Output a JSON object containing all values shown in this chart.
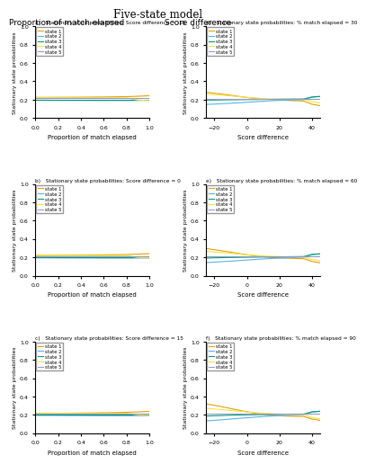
{
  "title": "Five-state model",
  "col_labels": [
    "Proportion of match elapsed",
    "Score difference"
  ],
  "subplot_labels": [
    "a)",
    "b)",
    "c)",
    "d)",
    "e)",
    "f)"
  ],
  "subplot_titles": [
    "Stationary state probabilities: Score difference = -15",
    "Stationary state probabilities: Score difference = 0",
    "Stationary state probabilities: Score difference = 15",
    "Stationary state probabilities: % match elapsed = 30",
    "Stationary state probabilities: % match elapsed = 60",
    "Stationary state probabilities: % match elapsed = 90"
  ],
  "state_colors": [
    "#E69F00",
    "#56B4E9",
    "#009E73",
    "#F0E442",
    "#9999CC"
  ],
  "state_labels": [
    "state 1",
    "state 2",
    "state 3",
    "state 4",
    "state 5"
  ],
  "ylabel": "Stationary state probabilities",
  "xlabel_left": "Proportion of match elapsed",
  "xlabel_right": "Score difference",
  "ylim": [
    0.0,
    1.0
  ],
  "yticks": [
    0.0,
    0.2,
    0.4,
    0.6,
    0.8,
    1.0
  ],
  "xlim_left": [
    0.0,
    1.0
  ],
  "xticks_left": [
    0.0,
    0.2,
    0.4,
    0.6,
    0.8,
    1.0
  ],
  "xlim_right": [
    -25,
    45
  ],
  "xticks_right": [
    -20,
    0,
    20,
    40
  ],
  "left_data": {
    "a": {
      "x": [
        0.0,
        0.1,
        0.2,
        0.3,
        0.4,
        0.5,
        0.6,
        0.7,
        0.8,
        0.9,
        1.0
      ],
      "states": [
        [
          0.225,
          0.225,
          0.226,
          0.226,
          0.227,
          0.228,
          0.229,
          0.231,
          0.233,
          0.237,
          0.243
        ],
        [
          0.195,
          0.194,
          0.193,
          0.192,
          0.192,
          0.191,
          0.191,
          0.191,
          0.191,
          0.192,
          0.193
        ],
        [
          0.2,
          0.2,
          0.2,
          0.2,
          0.2,
          0.2,
          0.2,
          0.2,
          0.2,
          0.2,
          0.2
        ],
        [
          0.222,
          0.222,
          0.221,
          0.22,
          0.22,
          0.219,
          0.219,
          0.218,
          0.218,
          0.196,
          0.19
        ],
        [
          0.215,
          0.215,
          0.215,
          0.215,
          0.215,
          0.215,
          0.215,
          0.215,
          0.215,
          0.215,
          0.215
        ]
      ]
    },
    "b": {
      "x": [
        0.0,
        0.1,
        0.2,
        0.3,
        0.4,
        0.5,
        0.6,
        0.7,
        0.8,
        0.9,
        1.0
      ],
      "states": [
        [
          0.22,
          0.221,
          0.222,
          0.223,
          0.224,
          0.225,
          0.226,
          0.228,
          0.23,
          0.234,
          0.24
        ],
        [
          0.195,
          0.194,
          0.193,
          0.193,
          0.192,
          0.192,
          0.191,
          0.191,
          0.191,
          0.192,
          0.193
        ],
        [
          0.2,
          0.2,
          0.2,
          0.2,
          0.2,
          0.2,
          0.2,
          0.2,
          0.2,
          0.2,
          0.2
        ],
        [
          0.222,
          0.222,
          0.221,
          0.22,
          0.22,
          0.219,
          0.219,
          0.218,
          0.218,
          0.198,
          0.194
        ],
        [
          0.215,
          0.215,
          0.215,
          0.215,
          0.215,
          0.215,
          0.215,
          0.215,
          0.215,
          0.215,
          0.215
        ]
      ]
    },
    "c": {
      "x": [
        0.0,
        0.1,
        0.2,
        0.3,
        0.4,
        0.5,
        0.6,
        0.7,
        0.8,
        0.9,
        1.0
      ],
      "states": [
        [
          0.215,
          0.216,
          0.218,
          0.219,
          0.221,
          0.222,
          0.224,
          0.226,
          0.229,
          0.233,
          0.239
        ],
        [
          0.195,
          0.194,
          0.194,
          0.193,
          0.193,
          0.192,
          0.192,
          0.191,
          0.191,
          0.192,
          0.193
        ],
        [
          0.2,
          0.2,
          0.2,
          0.2,
          0.2,
          0.2,
          0.2,
          0.2,
          0.2,
          0.2,
          0.2
        ],
        [
          0.22,
          0.22,
          0.219,
          0.218,
          0.218,
          0.217,
          0.217,
          0.218,
          0.219,
          0.2,
          0.195
        ],
        [
          0.215,
          0.215,
          0.215,
          0.215,
          0.215,
          0.215,
          0.215,
          0.215,
          0.215,
          0.215,
          0.215
        ]
      ]
    }
  },
  "right_data": {
    "d": {
      "x": [
        -25,
        -20,
        -15,
        -10,
        -5,
        0,
        5,
        10,
        15,
        20,
        25,
        30,
        35,
        40,
        45
      ],
      "states": [
        [
          0.28,
          0.27,
          0.26,
          0.248,
          0.236,
          0.224,
          0.214,
          0.207,
          0.2,
          0.196,
          0.192,
          0.188,
          0.185,
          0.15,
          0.135
        ],
        [
          0.148,
          0.152,
          0.156,
          0.161,
          0.166,
          0.172,
          0.178,
          0.183,
          0.188,
          0.192,
          0.195,
          0.198,
          0.2,
          0.225,
          0.235
        ],
        [
          0.195,
          0.196,
          0.198,
          0.199,
          0.2,
          0.201,
          0.202,
          0.203,
          0.204,
          0.205,
          0.206,
          0.207,
          0.208,
          0.23,
          0.235
        ],
        [
          0.26,
          0.255,
          0.248,
          0.241,
          0.233,
          0.225,
          0.218,
          0.212,
          0.208,
          0.206,
          0.205,
          0.205,
          0.206,
          0.178,
          0.165
        ],
        [
          0.21,
          0.21,
          0.21,
          0.21,
          0.21,
          0.21,
          0.21,
          0.21,
          0.21,
          0.21,
          0.21,
          0.21,
          0.21,
          0.21,
          0.21
        ]
      ]
    },
    "e": {
      "x": [
        -25,
        -20,
        -15,
        -10,
        -5,
        0,
        5,
        10,
        15,
        20,
        25,
        30,
        35,
        40,
        45
      ],
      "states": [
        [
          0.295,
          0.283,
          0.27,
          0.256,
          0.242,
          0.228,
          0.216,
          0.207,
          0.199,
          0.194,
          0.19,
          0.187,
          0.185,
          0.155,
          0.14
        ],
        [
          0.142,
          0.147,
          0.153,
          0.158,
          0.164,
          0.17,
          0.176,
          0.182,
          0.187,
          0.191,
          0.195,
          0.198,
          0.201,
          0.228,
          0.238
        ],
        [
          0.192,
          0.194,
          0.196,
          0.198,
          0.199,
          0.201,
          0.202,
          0.203,
          0.204,
          0.205,
          0.206,
          0.207,
          0.208,
          0.232,
          0.238
        ],
        [
          0.265,
          0.258,
          0.251,
          0.244,
          0.236,
          0.228,
          0.221,
          0.215,
          0.21,
          0.207,
          0.205,
          0.204,
          0.204,
          0.175,
          0.162
        ],
        [
          0.21,
          0.21,
          0.21,
          0.21,
          0.21,
          0.21,
          0.21,
          0.21,
          0.21,
          0.21,
          0.21,
          0.21,
          0.21,
          0.21,
          0.21
        ]
      ]
    },
    "f": {
      "x": [
        -25,
        -20,
        -15,
        -10,
        -5,
        0,
        5,
        10,
        15,
        20,
        25,
        30,
        35,
        40,
        45
      ],
      "states": [
        [
          0.32,
          0.305,
          0.288,
          0.27,
          0.252,
          0.234,
          0.219,
          0.207,
          0.197,
          0.191,
          0.187,
          0.184,
          0.183,
          0.155,
          0.14
        ],
        [
          0.135,
          0.141,
          0.148,
          0.155,
          0.162,
          0.169,
          0.176,
          0.182,
          0.187,
          0.192,
          0.195,
          0.198,
          0.201,
          0.23,
          0.24
        ],
        [
          0.188,
          0.191,
          0.194,
          0.197,
          0.199,
          0.201,
          0.202,
          0.204,
          0.205,
          0.206,
          0.207,
          0.208,
          0.209,
          0.234,
          0.24
        ],
        [
          0.272,
          0.265,
          0.257,
          0.249,
          0.241,
          0.233,
          0.225,
          0.218,
          0.213,
          0.209,
          0.206,
          0.205,
          0.204,
          0.172,
          0.158
        ],
        [
          0.21,
          0.21,
          0.21,
          0.21,
          0.21,
          0.21,
          0.21,
          0.21,
          0.21,
          0.21,
          0.21,
          0.21,
          0.21,
          0.21,
          0.21
        ]
      ]
    }
  }
}
